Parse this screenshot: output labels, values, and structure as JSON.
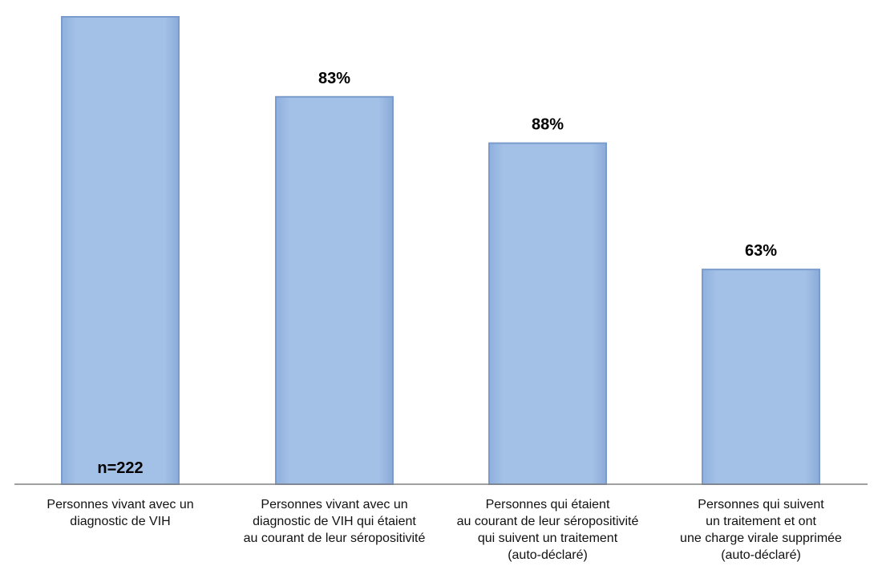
{
  "chart_data": {
    "type": "bar",
    "title": "",
    "xlabel": "",
    "ylabel": "",
    "ylim": [
      0,
      222
    ],
    "grid": false,
    "legend": "none",
    "bar_color": "#9dbbe3",
    "bar_edge_color": "#7a9ccc",
    "axis_color": "#808080",
    "categories": [
      [
        "Personnes vivant avec un",
        "diagnostic de VIH"
      ],
      [
        "Personnes vivant avec un",
        "diagnostic de VIH qui étaient",
        "au courant de leur séropositivité"
      ],
      [
        "Personnes qui étaient",
        "au courant de leur séropositivité",
        "qui suivent un traitement",
        "(auto-déclaré)"
      ],
      [
        "Personnes qui suivent",
        "un traitement et ont",
        "une charge virale supprimée",
        "(auto-déclaré)"
      ]
    ],
    "values": [
      222,
      184,
      162,
      102
    ],
    "data_labels": [
      "",
      "83%",
      "88%",
      "63%"
    ],
    "annotations": [
      {
        "bar_index": 0,
        "text": "n=222"
      }
    ]
  }
}
